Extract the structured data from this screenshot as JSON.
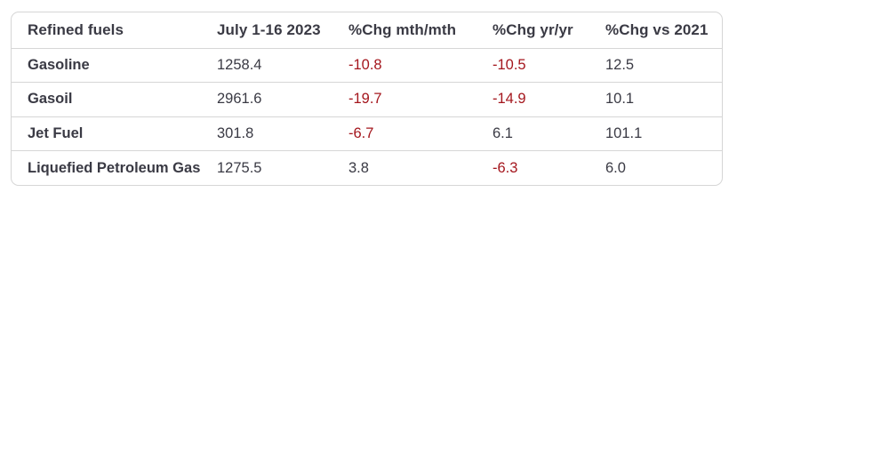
{
  "chart_data": {
    "type": "table",
    "title": "Refined fuels",
    "columns": [
      "Refined fuels",
      "July 1-16 2023",
      "%Chg mth/mth",
      "%Chg yr/yr",
      "%Chg vs 2021"
    ],
    "rows": [
      {
        "label": "Gasoline",
        "values": [
          "1258.4",
          "-10.8",
          "-10.5",
          "12.5"
        ]
      },
      {
        "label": "Gasoil",
        "values": [
          "2961.6",
          "-19.7",
          "-14.9",
          "10.1"
        ]
      },
      {
        "label": "Jet Fuel",
        "values": [
          "301.8",
          "-6.7",
          "6.1",
          "101.1"
        ]
      },
      {
        "label": "Liquefied Petroleum Gas",
        "values": [
          "1275.5",
          "3.8",
          "-6.3",
          "6.0"
        ]
      }
    ],
    "layout": {
      "negative_values_highlighted": true,
      "grid": "horizontal-dividers",
      "legend": "none"
    }
  },
  "colors": {
    "text": "#3a3a44",
    "negative": "#a4161d",
    "border": "#d6d6d6",
    "card_background": "#ffffff",
    "page_background": "#ffffff"
  }
}
